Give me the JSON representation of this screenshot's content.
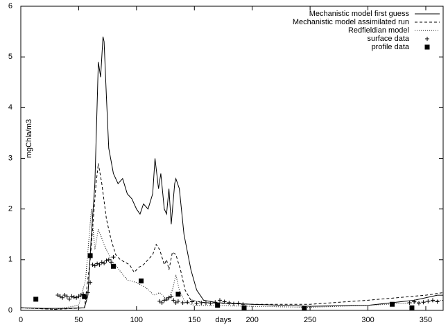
{
  "chart_data": {
    "type": "line",
    "x_label": "days",
    "y_label": "mgChla/m3",
    "xlim": [
      0,
      365
    ],
    "ylim": [
      0,
      6
    ],
    "xticks": [
      0,
      50,
      100,
      150,
      200,
      250,
      300,
      350
    ],
    "yticks": [
      0,
      1,
      2,
      3,
      4,
      5,
      6
    ],
    "legend": "top-right",
    "series": [
      {
        "name": "Mechanistic model first guess",
        "color": "#000000",
        "style": "solid",
        "x": [
          0,
          20,
          40,
          55,
          58,
          61,
          64,
          67,
          69,
          71,
          72,
          74,
          76,
          80,
          84,
          88,
          92,
          96,
          100,
          103,
          106,
          110,
          114,
          116,
          119,
          121,
          124,
          126,
          128,
          130,
          133,
          134,
          137,
          141,
          147,
          152,
          158,
          170,
          200,
          250,
          300,
          340,
          360,
          365
        ],
        "values": [
          0.05,
          0.04,
          0.04,
          0.05,
          0.3,
          1.5,
          2.5,
          4.9,
          4.6,
          5.4,
          5.3,
          4.2,
          3.2,
          2.7,
          2.5,
          2.6,
          2.3,
          2.2,
          2.0,
          1.9,
          2.1,
          2.0,
          2.3,
          3.0,
          2.4,
          2.7,
          2.0,
          1.9,
          2.4,
          1.7,
          2.5,
          2.6,
          2.4,
          1.5,
          0.8,
          0.4,
          0.2,
          0.15,
          0.12,
          0.08,
          0.1,
          0.2,
          0.3,
          0.3
        ]
      },
      {
        "name": "Mechanistic model assimilated run",
        "color": "#000000",
        "style": "dashed",
        "x": [
          0,
          30,
          55,
          60,
          65,
          67,
          70,
          74,
          78,
          82,
          86,
          90,
          94,
          98,
          102,
          106,
          110,
          114,
          117,
          120,
          124,
          126,
          128,
          131,
          134,
          138,
          142,
          147,
          160,
          200,
          250,
          300,
          350,
          365
        ],
        "values": [
          0.05,
          0.02,
          0.05,
          1.0,
          2.5,
          2.9,
          2.5,
          1.8,
          1.4,
          1.1,
          1.0,
          0.95,
          0.9,
          0.75,
          0.85,
          0.9,
          1.0,
          1.1,
          1.3,
          1.2,
          0.9,
          1.0,
          0.8,
          1.15,
          1.1,
          0.8,
          0.4,
          0.2,
          0.15,
          0.12,
          0.12,
          0.2,
          0.3,
          0.35
        ]
      },
      {
        "name": "Redfieldian model",
        "color": "#000000",
        "style": "dotted",
        "x": [
          0,
          30,
          50,
          56,
          61,
          64,
          67,
          72,
          78,
          85,
          92,
          100,
          108,
          115,
          120,
          127,
          131,
          134,
          137,
          142,
          150,
          200,
          250,
          300,
          340,
          365
        ],
        "values": [
          0.05,
          0.02,
          0.1,
          0.6,
          2.0,
          1.2,
          1.6,
          1.3,
          1.0,
          0.8,
          0.6,
          0.55,
          0.45,
          0.3,
          0.35,
          0.2,
          0.4,
          0.7,
          0.4,
          0.15,
          0.1,
          0.08,
          0.06,
          0.1,
          0.15,
          0.2
        ]
      },
      {
        "name": "surface data",
        "color": "#000000",
        "style": "plus",
        "x": [
          32,
          34,
          36,
          38,
          40,
          42,
          44,
          46,
          48,
          50,
          52,
          54,
          56,
          58,
          60,
          62,
          64,
          66,
          68,
          70,
          72,
          74,
          76,
          78,
          80,
          120,
          122,
          124,
          126,
          128,
          130,
          132,
          134,
          136,
          140,
          144,
          148,
          152,
          156,
          160,
          164,
          168,
          172,
          176,
          180,
          184,
          188,
          192,
          336,
          340,
          344,
          348,
          352,
          356,
          360
        ],
        "values": [
          0.3,
          0.28,
          0.25,
          0.3,
          0.27,
          0.22,
          0.28,
          0.26,
          0.25,
          0.28,
          0.3,
          0.32,
          0.25,
          0.35,
          0.55,
          0.9,
          0.88,
          0.92,
          0.9,
          0.95,
          0.93,
          0.98,
          1.0,
          0.95,
          1.05,
          0.18,
          0.15,
          0.2,
          0.22,
          0.25,
          0.28,
          0.2,
          0.15,
          0.18,
          0.15,
          0.16,
          0.17,
          0.14,
          0.15,
          0.15,
          0.14,
          0.16,
          0.2,
          0.17,
          0.15,
          0.13,
          0.14,
          0.12,
          0.15,
          0.17,
          0.14,
          0.16,
          0.18,
          0.2,
          0.17
        ]
      },
      {
        "name": "profile data",
        "color": "#000000",
        "style": "square",
        "x": [
          13,
          55,
          60,
          80,
          104,
          136,
          170,
          193,
          245,
          321,
          338
        ],
        "values": [
          0.22,
          0.27,
          1.08,
          0.87,
          0.58,
          0.32,
          0.1,
          0.05,
          0.04,
          0.12,
          0.05
        ]
      }
    ]
  }
}
